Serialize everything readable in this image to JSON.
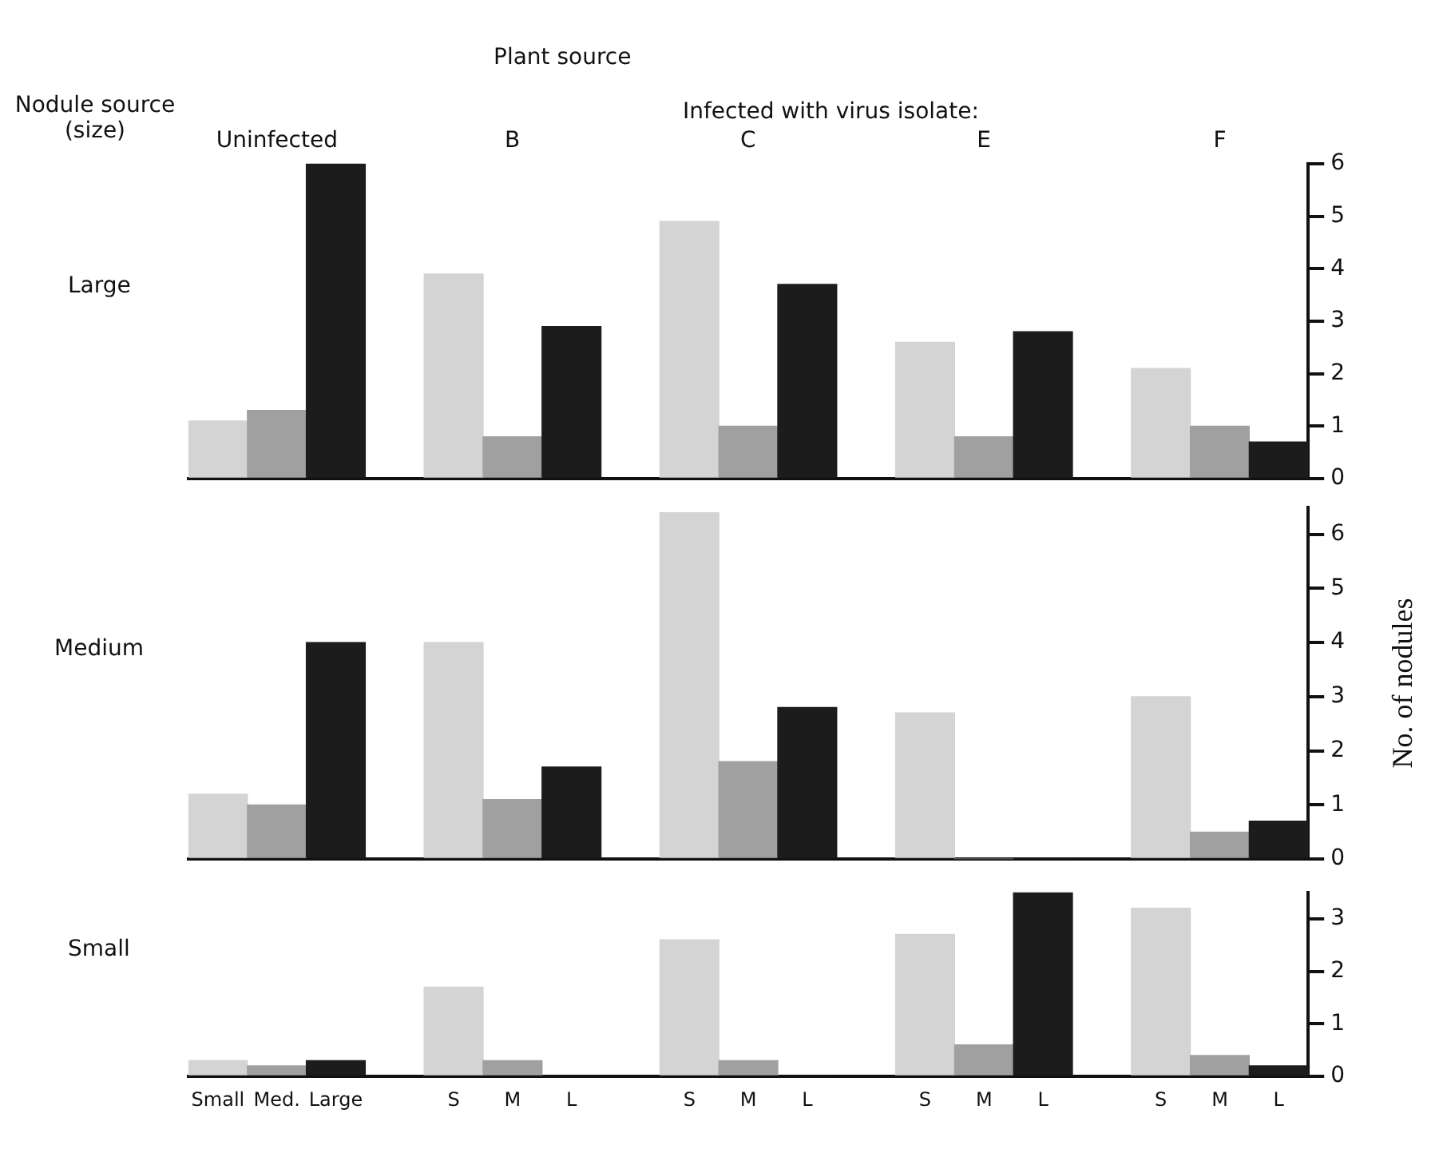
{
  "chart_data": [
    {
      "type": "bar",
      "title": "Plant source",
      "subtitle": "Infected with virus isolate:",
      "annotations": [
        "Large",
        "Nodule source (size)",
        "Uninfected",
        "B",
        "C",
        "E",
        "F"
      ],
      "categories": [
        null,
        null,
        null,
        null,
        null,
        null,
        null,
        null,
        null,
        null,
        null,
        null,
        null,
        null,
        null,
        null,
        null,
        null,
        null
      ],
      "values": [
        1.1,
        1.3,
        6.0,
        null,
        3.9,
        0.8,
        2.9,
        null,
        4.9,
        1.0,
        3.7,
        null,
        2.6,
        0.8,
        2.8,
        null,
        2.1,
        1.0,
        0.7
      ],
      "colors": [
        "#d4d4d4",
        "#a0a0a0",
        "#1c1c1c",
        null,
        "#d4d4d4",
        "#a0a0a0",
        "#1c1c1c",
        null,
        "#d4d4d4",
        "#a0a0a0",
        "#1c1c1c",
        null,
        "#d4d4d4",
        "#a0a0a0",
        "#1c1c1c",
        null,
        "#d4d4d4",
        "#a0a0a0",
        "#1c1c1c"
      ],
      "ylim": [
        0,
        6
      ],
      "yticks": [
        0,
        1,
        2,
        3,
        4,
        5,
        6
      ],
      "tick_labels": "y",
      "grid": false,
      "legend": false
    },
    {
      "type": "bar",
      "ylabel": "No. of nodules",
      "annotations": [
        "Medium"
      ],
      "categories": [
        null,
        null,
        null,
        null,
        null,
        null,
        null,
        null,
        null,
        null,
        null,
        null,
        null,
        null,
        null,
        null,
        null,
        null,
        null
      ],
      "values": [
        1.2,
        1.0,
        4.0,
        null,
        4.0,
        1.1,
        1.7,
        null,
        6.4,
        1.8,
        2.8,
        null,
        2.7,
        0,
        0,
        null,
        3.0,
        0.5,
        0.7
      ],
      "colors": [
        "#d4d4d4",
        "#a0a0a0",
        "#1c1c1c",
        null,
        "#d4d4d4",
        "#a0a0a0",
        "#1c1c1c",
        null,
        "#d4d4d4",
        "#a0a0a0",
        "#1c1c1c",
        null,
        "#d4d4d4",
        "#a0a0a0",
        "#1c1c1c",
        null,
        "#d4d4d4",
        "#a0a0a0",
        "#1c1c1c"
      ],
      "ylim": [
        0,
        6.5
      ],
      "yticks": [
        0,
        1,
        2,
        3,
        4,
        5,
        6
      ],
      "tick_labels": "y",
      "grid": false,
      "legend": false
    },
    {
      "type": "bar",
      "annotations": [
        "Small"
      ],
      "categories": [
        "Small",
        "Med.",
        "Large",
        null,
        "S",
        "M",
        "L",
        null,
        "S",
        "M",
        "L",
        null,
        "S",
        "M",
        "L",
        null,
        "S",
        "M",
        "L"
      ],
      "values": [
        0.3,
        0.2,
        0.3,
        null,
        1.7,
        0.3,
        0,
        null,
        2.6,
        0.3,
        0,
        null,
        2.7,
        0.6,
        3.5,
        null,
        3.2,
        0.4,
        0.2
      ],
      "colors": [
        "#d4d4d4",
        "#a0a0a0",
        "#1c1c1c",
        null,
        "#d4d4d4",
        "#a0a0a0",
        "#1c1c1c",
        null,
        "#d4d4d4",
        "#a0a0a0",
        "#1c1c1c",
        null,
        "#d4d4d4",
        "#a0a0a0",
        "#1c1c1c",
        null,
        "#d4d4d4",
        "#a0a0a0",
        "#1c1c1c"
      ],
      "ylim": [
        0,
        3.5
      ],
      "yticks": [
        0,
        1,
        2,
        3
      ],
      "grid": false,
      "legend": false
    }
  ]
}
